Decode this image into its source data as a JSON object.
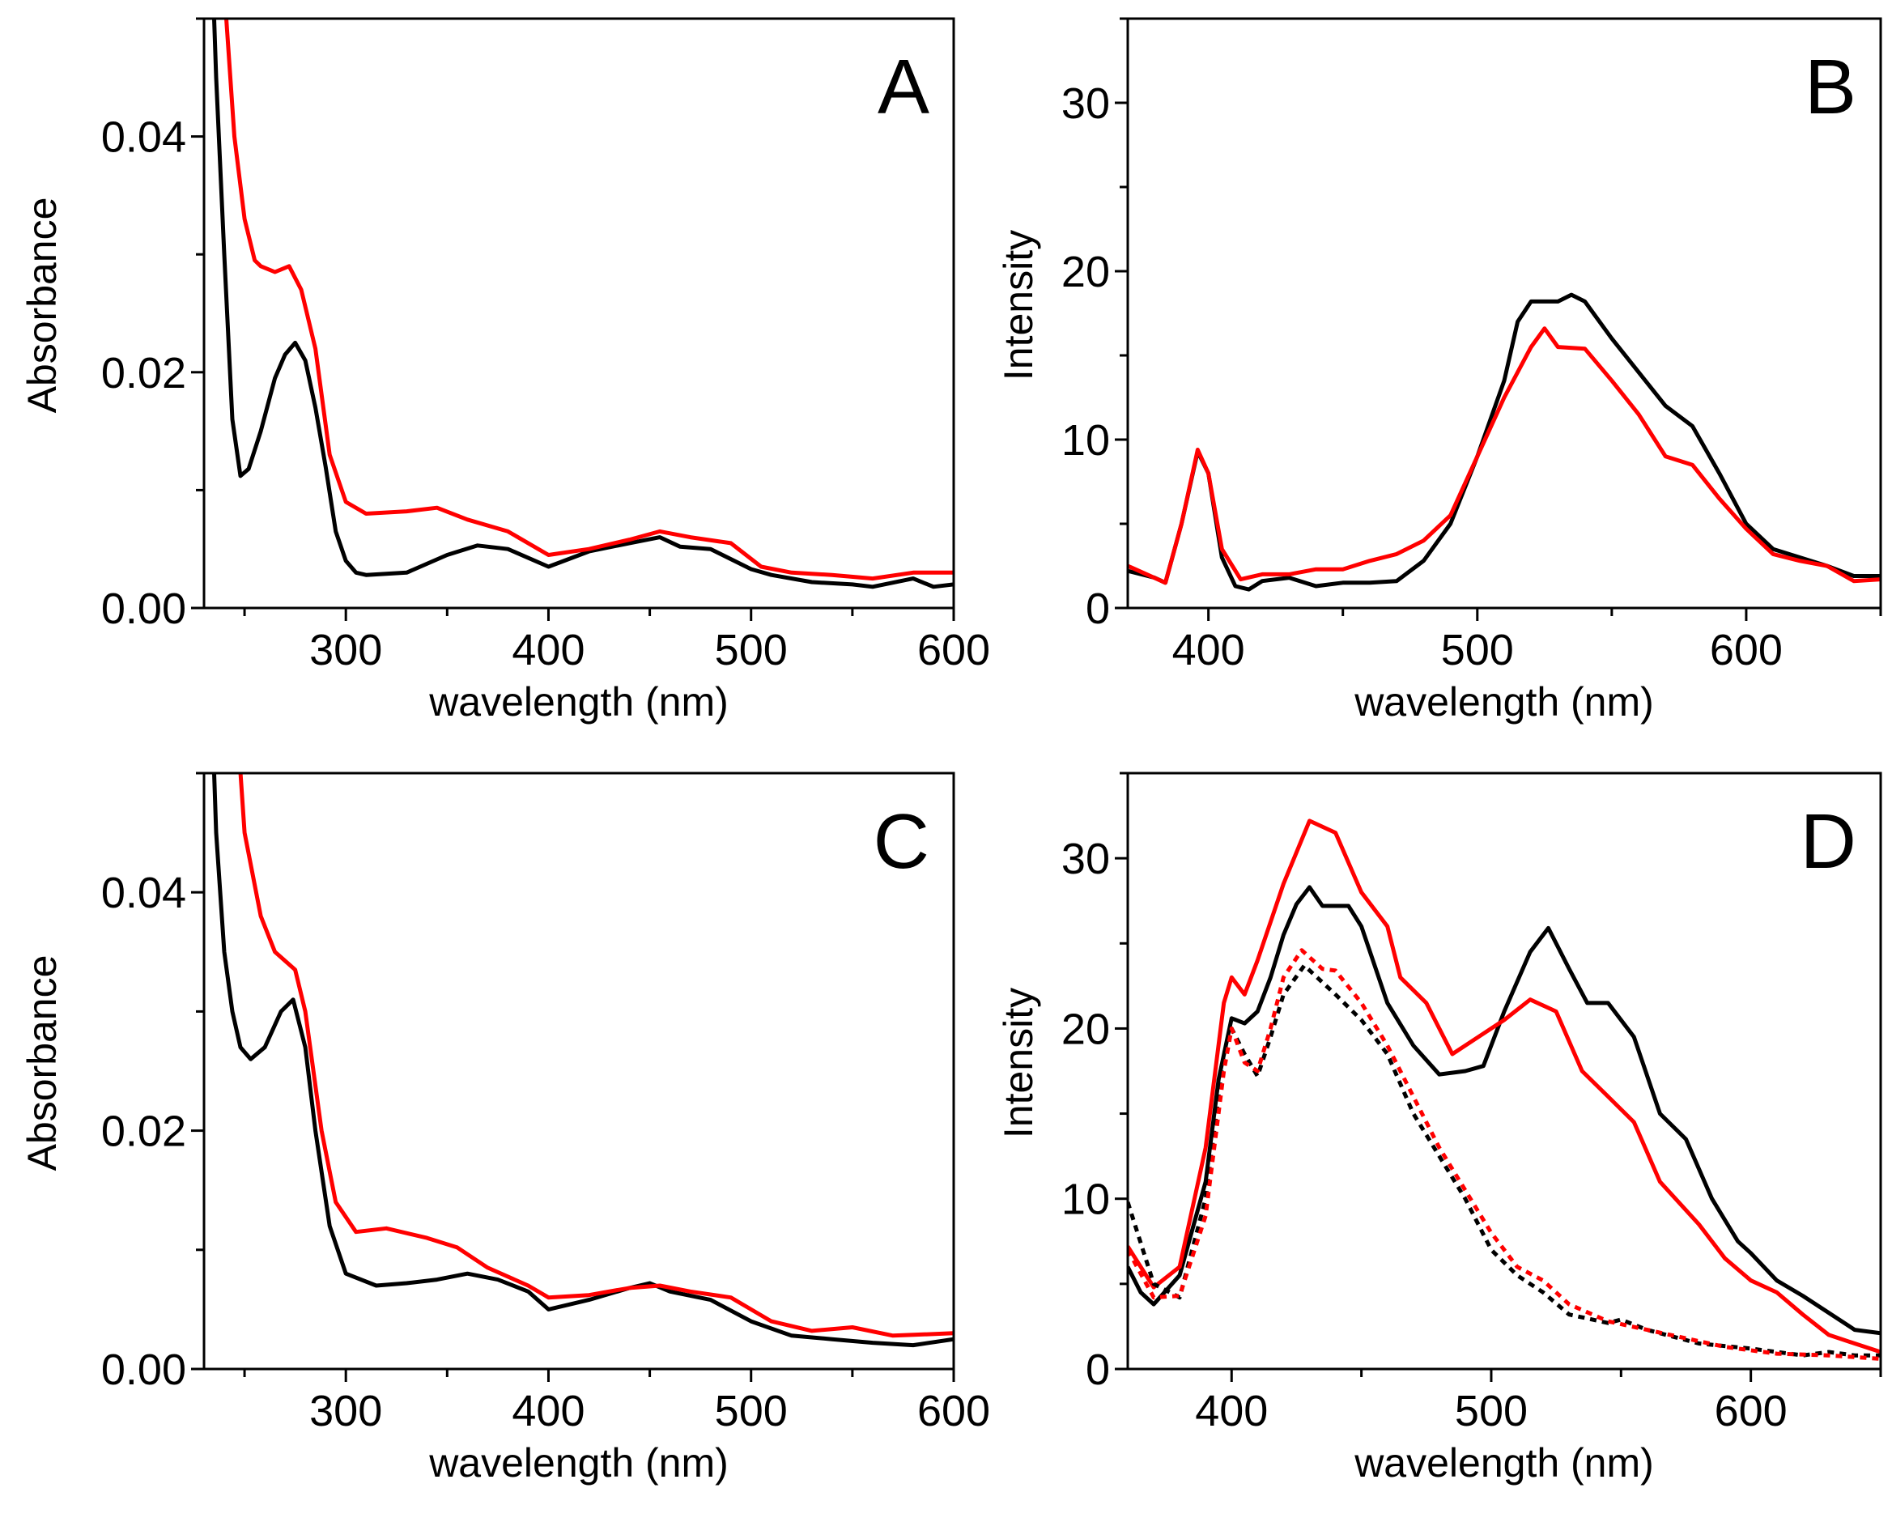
{
  "chart_data": [
    {
      "panel": "A",
      "type": "line",
      "xlabel": "wavelength (nm)",
      "ylabel": "Absorbance",
      "xlim": [
        230,
        600
      ],
      "ylim": [
        0,
        0.05
      ],
      "xticks": [
        300,
        400,
        500,
        600
      ],
      "xtick_labels": [
        "300",
        "400",
        "500",
        "600"
      ],
      "yticks": [
        0,
        0.02,
        0.04
      ],
      "ytick_labels": [
        "0.00",
        "0.02",
        "0.04"
      ],
      "xminor": 50,
      "yminor": 0.01,
      "series": [
        {
          "name": "black",
          "color": "#000000",
          "style": "solid",
          "x": [
            233,
            236,
            240,
            244,
            248,
            252,
            258,
            265,
            270,
            275,
            280,
            285,
            290,
            295,
            300,
            305,
            310,
            330,
            350,
            365,
            380,
            400,
            420,
            440,
            455,
            465,
            480,
            500,
            510,
            530,
            550,
            560,
            580,
            590,
            600
          ],
          "y": [
            0.06,
            0.045,
            0.03,
            0.016,
            0.0112,
            0.0118,
            0.015,
            0.0195,
            0.0215,
            0.0225,
            0.021,
            0.017,
            0.012,
            0.0065,
            0.004,
            0.003,
            0.0028,
            0.003,
            0.0045,
            0.0053,
            0.005,
            0.0035,
            0.0048,
            0.0055,
            0.006,
            0.0052,
            0.005,
            0.0033,
            0.0028,
            0.0022,
            0.002,
            0.0018,
            0.0025,
            0.0018,
            0.002
          ]
        },
        {
          "name": "red",
          "color": "#ff0000",
          "style": "solid",
          "x": [
            238,
            241,
            245,
            250,
            255,
            258,
            265,
            272,
            278,
            285,
            292,
            300,
            310,
            330,
            345,
            360,
            380,
            390,
            400,
            420,
            440,
            455,
            470,
            490,
            505,
            520,
            540,
            560,
            580,
            600
          ],
          "y": [
            0.06,
            0.05,
            0.04,
            0.033,
            0.0295,
            0.029,
            0.0285,
            0.029,
            0.027,
            0.022,
            0.013,
            0.009,
            0.008,
            0.0082,
            0.0085,
            0.0075,
            0.0065,
            0.0055,
            0.0045,
            0.005,
            0.0058,
            0.0065,
            0.006,
            0.0055,
            0.0035,
            0.003,
            0.0028,
            0.0025,
            0.003,
            0.003
          ]
        }
      ]
    },
    {
      "panel": "B",
      "type": "line",
      "xlabel": "wavelength (nm)",
      "ylabel": "Intensity",
      "xlim": [
        370,
        650
      ],
      "ylim": [
        0,
        35
      ],
      "xticks": [
        400,
        500,
        600
      ],
      "xtick_labels": [
        "400",
        "500",
        "600"
      ],
      "yticks": [
        0,
        10,
        20,
        30
      ],
      "ytick_labels": [
        "0",
        "10",
        "20",
        "30"
      ],
      "xminor": 50,
      "yminor": 5,
      "series": [
        {
          "name": "black",
          "color": "#000000",
          "style": "solid",
          "x": [
            370,
            380,
            384,
            390,
            396,
            400,
            405,
            410,
            415,
            420,
            430,
            440,
            450,
            460,
            470,
            480,
            490,
            500,
            510,
            515,
            520,
            530,
            535,
            540,
            550,
            560,
            570,
            580,
            590,
            600,
            610,
            620,
            630,
            640,
            650
          ],
          "y": [
            2.2,
            1.8,
            1.5,
            5,
            9.3,
            8,
            3,
            1.3,
            1.1,
            1.6,
            1.8,
            1.3,
            1.5,
            1.5,
            1.6,
            2.8,
            5,
            9,
            13.5,
            17,
            18.2,
            18.2,
            18.6,
            18.2,
            16,
            14,
            12,
            10.8,
            8,
            5,
            3.5,
            3,
            2.5,
            1.9,
            1.9
          ]
        },
        {
          "name": "red",
          "color": "#ff0000",
          "style": "solid",
          "x": [
            370,
            384,
            390,
            396,
            400,
            405,
            412,
            420,
            430,
            440,
            450,
            460,
            470,
            480,
            490,
            500,
            510,
            520,
            525,
            530,
            540,
            550,
            560,
            570,
            580,
            590,
            600,
            610,
            620,
            630,
            640,
            650
          ],
          "y": [
            2.5,
            1.5,
            5,
            9.4,
            8,
            3.5,
            1.7,
            2,
            2,
            2.3,
            2.3,
            2.8,
            3.2,
            4,
            5.5,
            9,
            12.5,
            15.5,
            16.6,
            15.5,
            15.4,
            13.5,
            11.5,
            9,
            8.5,
            6.5,
            4.7,
            3.2,
            2.8,
            2.5,
            1.6,
            1.7
          ]
        }
      ]
    },
    {
      "panel": "C",
      "type": "line",
      "xlabel": "wavelength (nm)",
      "ylabel": "Absorbance",
      "xlim": [
        230,
        600
      ],
      "ylim": [
        0,
        0.05
      ],
      "xticks": [
        300,
        400,
        500,
        600
      ],
      "xtick_labels": [
        "300",
        "400",
        "500",
        "600"
      ],
      "yticks": [
        0,
        0.02,
        0.04
      ],
      "ytick_labels": [
        "0.00",
        "0.02",
        "0.04"
      ],
      "xminor": 50,
      "yminor": 0.01,
      "series": [
        {
          "name": "black",
          "color": "#000000",
          "style": "solid",
          "x": [
            233,
            236,
            240,
            244,
            248,
            253,
            260,
            268,
            274,
            280,
            285,
            292,
            300,
            315,
            330,
            345,
            360,
            375,
            390,
            400,
            420,
            440,
            450,
            460,
            480,
            500,
            520,
            540,
            560,
            580,
            600
          ],
          "y": [
            0.06,
            0.045,
            0.035,
            0.03,
            0.027,
            0.026,
            0.027,
            0.03,
            0.031,
            0.027,
            0.02,
            0.012,
            0.008,
            0.007,
            0.0072,
            0.0075,
            0.008,
            0.0075,
            0.0065,
            0.005,
            0.0058,
            0.0068,
            0.0072,
            0.0065,
            0.0058,
            0.004,
            0.0028,
            0.0025,
            0.0022,
            0.002,
            0.0025
          ]
        },
        {
          "name": "red",
          "color": "#ff0000",
          "style": "solid",
          "x": [
            244,
            250,
            258,
            265,
            275,
            280,
            288,
            295,
            305,
            320,
            340,
            355,
            370,
            390,
            400,
            420,
            440,
            455,
            470,
            490,
            500,
            510,
            530,
            550,
            570,
            600
          ],
          "y": [
            0.06,
            0.045,
            0.038,
            0.035,
            0.0335,
            0.03,
            0.02,
            0.014,
            0.0115,
            0.0118,
            0.011,
            0.0102,
            0.0085,
            0.007,
            0.006,
            0.0062,
            0.0068,
            0.007,
            0.0065,
            0.006,
            0.005,
            0.004,
            0.0032,
            0.0035,
            0.0028,
            0.003
          ]
        }
      ]
    },
    {
      "panel": "D",
      "type": "line",
      "xlabel": "wavelength (nm)",
      "ylabel": "Intensity",
      "xlim": [
        360,
        650
      ],
      "ylim": [
        0,
        35
      ],
      "xticks": [
        400,
        500,
        600
      ],
      "xtick_labels": [
        "400",
        "500",
        "600"
      ],
      "yticks": [
        0,
        10,
        20,
        30
      ],
      "ytick_labels": [
        "0",
        "10",
        "20",
        "30"
      ],
      "xminor": 50,
      "yminor": 5,
      "series": [
        {
          "name": "black solid",
          "color": "#000000",
          "style": "solid",
          "x": [
            360,
            365,
            370,
            380,
            390,
            395,
            400,
            405,
            410,
            415,
            420,
            425,
            430,
            435,
            445,
            450,
            460,
            470,
            480,
            490,
            497,
            505,
            515,
            522,
            530,
            537,
            545,
            555,
            565,
            575,
            585,
            595,
            600,
            610,
            620,
            630,
            640,
            650
          ],
          "y": [
            6,
            4.5,
            3.8,
            5.5,
            11,
            17,
            20.6,
            20.3,
            21,
            23,
            25.5,
            27.3,
            28.3,
            27.2,
            27.2,
            26,
            21.5,
            19,
            17.3,
            17.5,
            17.8,
            21,
            24.5,
            25.9,
            23.5,
            21.5,
            21.5,
            19.5,
            15,
            13.5,
            10,
            7.5,
            6.8,
            5.2,
            4.3,
            3.3,
            2.3,
            2.1
          ]
        },
        {
          "name": "red solid",
          "color": "#ff0000",
          "style": "solid",
          "x": [
            360,
            370,
            380,
            390,
            397,
            400,
            405,
            410,
            420,
            430,
            440,
            450,
            460,
            465,
            475,
            485,
            495,
            505,
            515,
            525,
            535,
            545,
            555,
            565,
            580,
            590,
            600,
            610,
            620,
            630,
            640,
            650
          ],
          "y": [
            7.2,
            4.8,
            6,
            13,
            21.5,
            23,
            22,
            24,
            28.5,
            32.2,
            31.5,
            28,
            26,
            23,
            21.5,
            18.5,
            19.5,
            20.5,
            21.7,
            21,
            17.5,
            16,
            14.5,
            11,
            8.5,
            6.5,
            5.2,
            4.5,
            3.2,
            2,
            1.5,
            1
          ]
        },
        {
          "name": "black dotted",
          "color": "#000000",
          "style": "dotted",
          "x": [
            360,
            370,
            380,
            390,
            397,
            400,
            405,
            410,
            415,
            420,
            428,
            440,
            450,
            460,
            470,
            480,
            490,
            500,
            510,
            520,
            530,
            545,
            550,
            560,
            580,
            600,
            620,
            630,
            640,
            650
          ],
          "y": [
            9.8,
            5,
            4.2,
            10,
            18.5,
            20,
            18.5,
            17.2,
            19.5,
            22,
            23.7,
            22,
            20.5,
            18.5,
            15,
            12.5,
            10,
            7,
            5.5,
            4.5,
            3.2,
            2.7,
            2.9,
            2.3,
            1.5,
            1.2,
            0.8,
            1.0,
            0.8,
            0.8
          ]
        },
        {
          "name": "red dotted",
          "color": "#ff0000",
          "style": "dotted",
          "x": [
            360,
            370,
            380,
            390,
            397,
            400,
            405,
            410,
            415,
            420,
            427,
            435,
            440,
            450,
            460,
            470,
            480,
            490,
            500,
            510,
            520,
            530,
            545,
            560,
            575,
            590,
            610,
            630,
            650
          ],
          "y": [
            7,
            4.2,
            4.3,
            9,
            17.5,
            20,
            18,
            17.5,
            20,
            23,
            24.6,
            23.5,
            23.4,
            21.5,
            19,
            16,
            13,
            10.5,
            8,
            6,
            5.2,
            3.8,
            2.8,
            2.3,
            1.8,
            1.3,
            0.9,
            0.8,
            0.6
          ]
        }
      ]
    }
  ]
}
